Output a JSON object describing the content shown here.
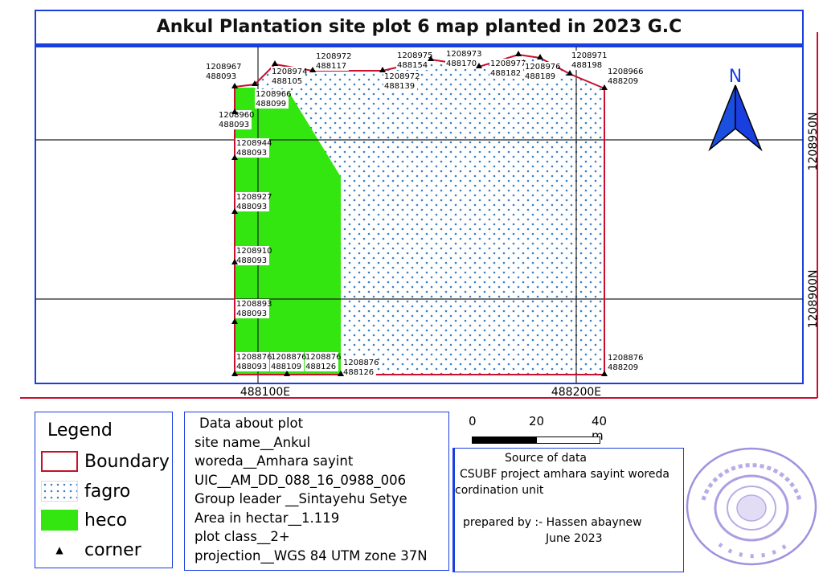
{
  "title": "Ankul Plantation site plot 6 map planted in 2023 G.C",
  "map": {
    "grid_labels": {
      "x": [
        "488100E",
        "488200E"
      ],
      "y": [
        "1208950N",
        "1208900N"
      ]
    },
    "north_arrow": "N",
    "colors": {
      "boundary": "#c8102e",
      "heco": "#33e60f",
      "fagro_dots": "#3a7fc4",
      "frame": "#1a3fe0"
    },
    "corners": [
      {
        "n": "1208967",
        "e": "488093"
      },
      {
        "n": "1208966",
        "e": "488099"
      },
      {
        "n": "1208974",
        "e": "488105"
      },
      {
        "n": "1208972",
        "e": "488117"
      },
      {
        "n": "1208972",
        "e": "488139"
      },
      {
        "n": "1208975",
        "e": "488154"
      },
      {
        "n": "1208973",
        "e": "488170"
      },
      {
        "n": "1208977",
        "e": "488182"
      },
      {
        "n": "1208976",
        "e": "488189"
      },
      {
        "n": "1208971",
        "e": "488198"
      },
      {
        "n": "1208966",
        "e": "488209"
      },
      {
        "n": "1208876",
        "e": "488209"
      },
      {
        "n": "1208876",
        "e": "488126"
      },
      {
        "n": "1208876",
        "e": "488126"
      },
      {
        "n": "1208876",
        "e": "488109"
      },
      {
        "n": "1208876",
        "e": "488093"
      },
      {
        "n": "1208893",
        "e": "488093"
      },
      {
        "n": "1208910",
        "e": "488093"
      },
      {
        "n": "1208927",
        "e": "488093"
      },
      {
        "n": "1208944",
        "e": "488093"
      },
      {
        "n": "1208960",
        "e": "488093"
      }
    ]
  },
  "legend": {
    "title": "Legend",
    "items": [
      {
        "label": "Boundary",
        "icon": "boundary-swatch"
      },
      {
        "label": "fagro",
        "icon": "dotted-swatch"
      },
      {
        "label": "heco",
        "icon": "green-swatch"
      },
      {
        "label": "corner",
        "icon": "triangle-icon"
      }
    ]
  },
  "plot_data": {
    "heading": "Data about plot",
    "lines": [
      "site name__Ankul",
      "woreda__Amhara sayint",
      "UIC__AM_DD_088_16_0988_006",
      "Group leader __Sintayehu Setye",
      "Area in hectar__1.119",
      "plot class__2+",
      "projection__WGS 84 UTM zone 37N"
    ]
  },
  "scale_bar": {
    "labels": [
      "0",
      "20",
      "40 m"
    ]
  },
  "source": {
    "heading": "Source of data",
    "line1": "CSUBF project amhara sayint woreda",
    "line2": "cordination unit",
    "prepared": "prepared by :- Hassen abaynew",
    "date": "June 2023"
  }
}
